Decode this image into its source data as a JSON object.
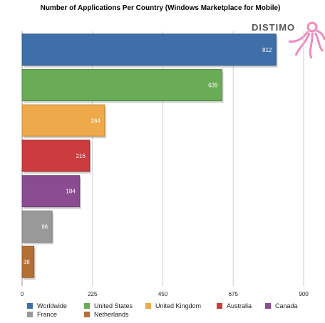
{
  "chart_data": {
    "type": "bar",
    "orientation": "horizontal",
    "title": "Number of Applications Per Country (Windows Marketplace for Mobile)",
    "categories": [
      "Worldwide",
      "United States",
      "United Kingdom",
      "Australia",
      "Canada",
      "France",
      "Netherlands"
    ],
    "values": [
      812,
      639,
      264,
      216,
      184,
      96,
      38
    ],
    "colors": [
      "#3f6fa8",
      "#6aab55",
      "#eeaa4a",
      "#cc3b3e",
      "#8a4c91",
      "#999999",
      "#b66f33"
    ],
    "xlim": [
      0,
      900
    ],
    "xticks": [
      0,
      225,
      450,
      675,
      900
    ],
    "grid": true,
    "legend_position": "bottom",
    "data_labels": true
  },
  "logo": {
    "text": "DISTIMO",
    "color": "#f08bbf"
  }
}
